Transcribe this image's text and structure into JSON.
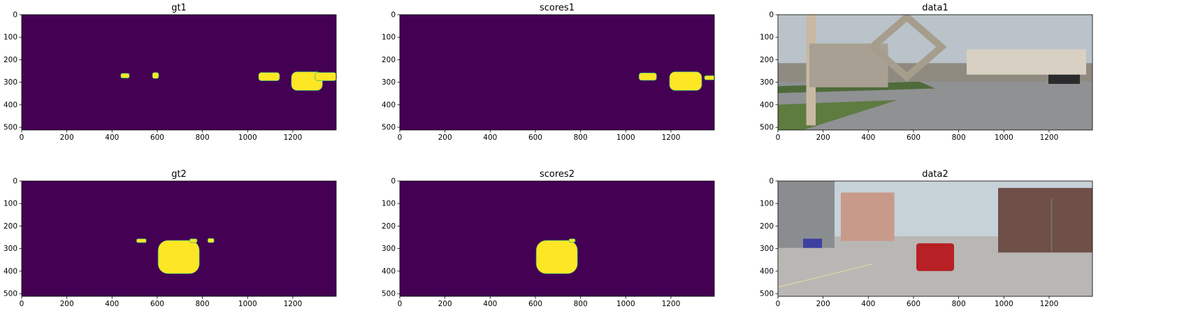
{
  "colors": {
    "background_class": "#440154",
    "foreground_class": "#fde725",
    "edge_class": "#35b779"
  },
  "chart_data": [
    {
      "type": "heatmap",
      "title": "gt1",
      "xlim": [
        0,
        1392
      ],
      "ylim": [
        512,
        0
      ],
      "xticks": [
        0,
        200,
        400,
        600,
        800,
        1000,
        1200
      ],
      "yticks": [
        0,
        100,
        200,
        300,
        400,
        500
      ],
      "blobs": [
        {
          "x": [
            440,
            475
          ],
          "y": [
            262,
            280
          ]
        },
        {
          "x": [
            580,
            605
          ],
          "y": [
            258,
            282
          ]
        },
        {
          "x": [
            1050,
            1140
          ],
          "y": [
            258,
            292
          ]
        },
        {
          "x": [
            1195,
            1330
          ],
          "y": [
            255,
            335
          ]
        },
        {
          "x": [
            1300,
            1392
          ],
          "y": [
            258,
            292
          ]
        }
      ]
    },
    {
      "type": "heatmap",
      "title": "scores1",
      "xlim": [
        0,
        1392
      ],
      "ylim": [
        512,
        0
      ],
      "xticks": [
        0,
        200,
        400,
        600,
        800,
        1000,
        1200
      ],
      "yticks": [
        0,
        100,
        200,
        300,
        400,
        500
      ],
      "blobs": [
        {
          "x": [
            1060,
            1135
          ],
          "y": [
            260,
            290
          ]
        },
        {
          "x": [
            1195,
            1335
          ],
          "y": [
            255,
            335
          ]
        },
        {
          "x": [
            1350,
            1392
          ],
          "y": [
            272,
            288
          ]
        }
      ]
    },
    {
      "type": "heatmap",
      "title": "data1",
      "content": "image",
      "xlim": [
        0,
        1392
      ],
      "ylim": [
        512,
        0
      ],
      "xticks": [
        0,
        200,
        400,
        600,
        800,
        1000,
        1200
      ],
      "yticks": [
        0,
        100,
        200,
        300,
        400,
        500
      ]
    },
    {
      "type": "heatmap",
      "title": "gt2",
      "xlim": [
        0,
        1392
      ],
      "ylim": [
        512,
        0
      ],
      "xticks": [
        0,
        200,
        400,
        600,
        800,
        1000,
        1200
      ],
      "yticks": [
        0,
        100,
        200,
        300,
        400,
        500
      ],
      "blobs": [
        {
          "x": [
            510,
            550
          ],
          "y": [
            258,
            272
          ]
        },
        {
          "x": [
            605,
            785
          ],
          "y": [
            265,
            410
          ]
        },
        {
          "x": [
            745,
            775
          ],
          "y": [
            258,
            272
          ]
        },
        {
          "x": [
            825,
            850
          ],
          "y": [
            256,
            272
          ]
        }
      ]
    },
    {
      "type": "heatmap",
      "title": "scores2",
      "xlim": [
        0,
        1392
      ],
      "ylim": [
        512,
        0
      ],
      "xticks": [
        0,
        200,
        400,
        600,
        800,
        1000,
        1200
      ],
      "yticks": [
        0,
        100,
        200,
        300,
        400,
        500
      ],
      "blobs": [
        {
          "x": [
            605,
            785
          ],
          "y": [
            265,
            410
          ]
        },
        {
          "x": [
            750,
            775
          ],
          "y": [
            258,
            270
          ]
        }
      ]
    },
    {
      "type": "heatmap",
      "title": "data2",
      "content": "image",
      "xlim": [
        0,
        1392
      ],
      "ylim": [
        512,
        0
      ],
      "xticks": [
        0,
        200,
        400,
        600,
        800,
        1000,
        1200
      ],
      "yticks": [
        0,
        100,
        200,
        300,
        400,
        500
      ]
    }
  ]
}
